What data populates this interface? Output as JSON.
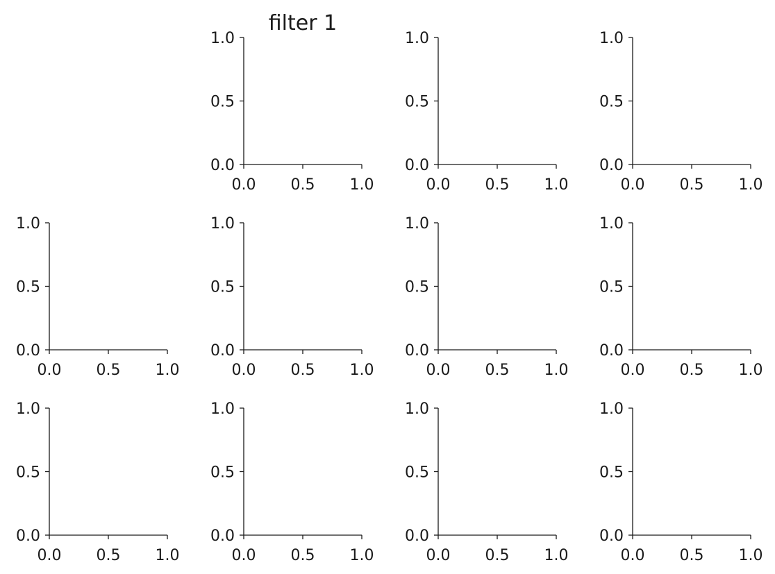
{
  "chart_data": {
    "type": "grid-of-empty-axes",
    "rows": 3,
    "cols": 4,
    "empty_slot": {
      "row": 0,
      "col": 0
    },
    "title": "filter 1",
    "title_panel": {
      "row": 0,
      "col": 1
    },
    "xlim": [
      0,
      1
    ],
    "ylim": [
      0,
      1
    ],
    "xticks": [
      0.0,
      0.5,
      1.0
    ],
    "yticks": [
      0.0,
      0.5,
      1.0
    ],
    "xtick_labels": [
      "0.0",
      "0.5",
      "1.0"
    ],
    "ytick_labels": [
      "0.0",
      "0.5",
      "1.0"
    ],
    "series": []
  }
}
